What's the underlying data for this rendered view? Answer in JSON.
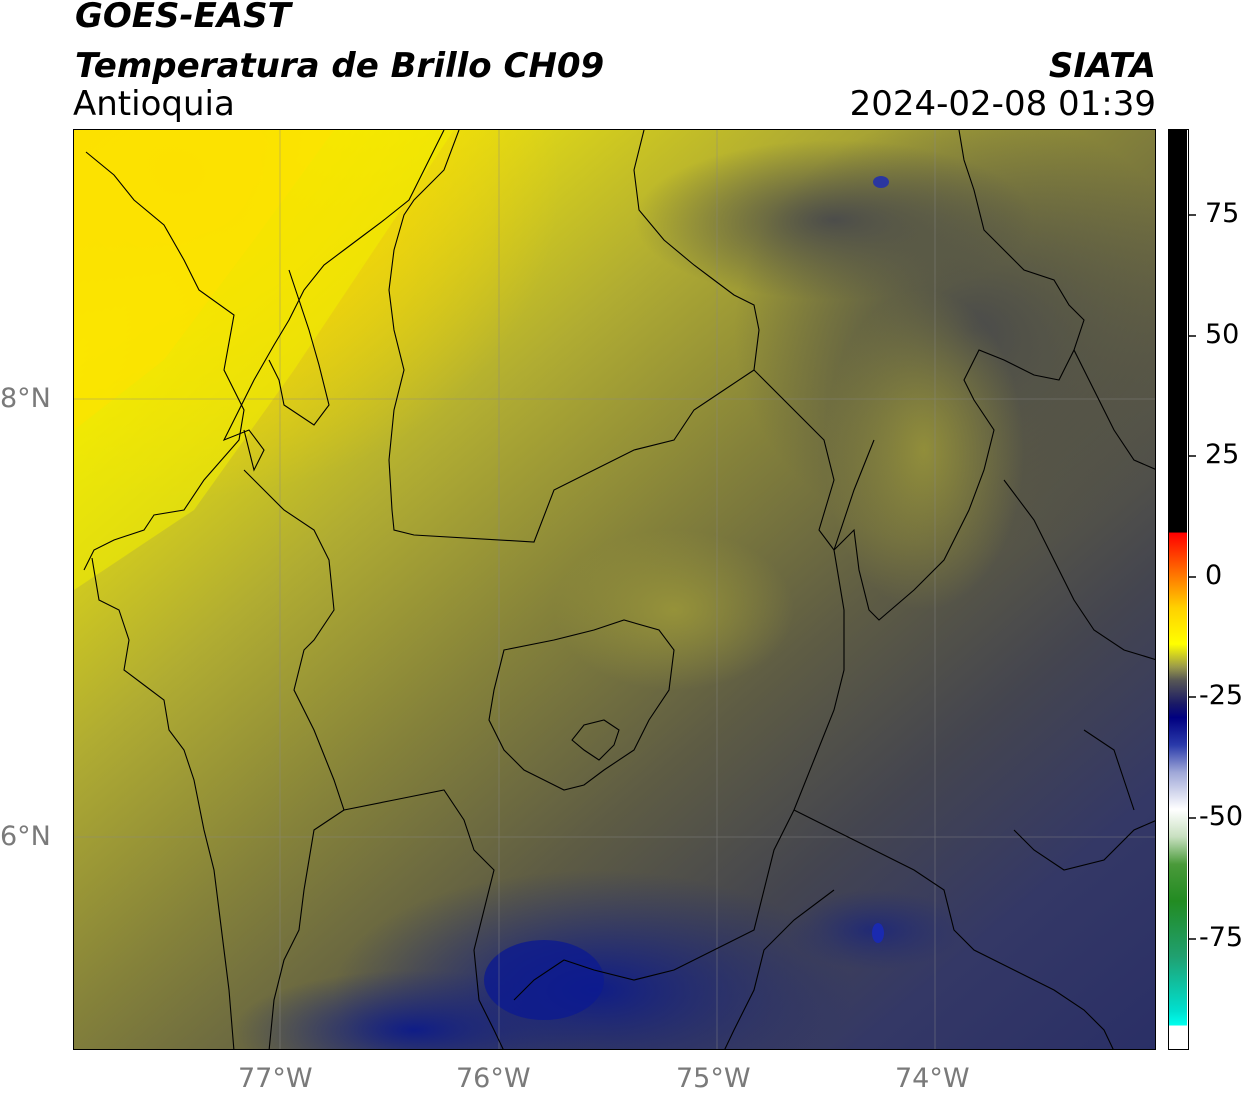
{
  "header": {
    "satellite": "GOES-EAST",
    "product": "Temperatura de Brillo CH09",
    "region": "Antioquia",
    "agency": "SIATA",
    "datetime": "2024-02-08 01:39"
  },
  "map": {
    "lon_ticks": [
      "77°W",
      "76°W",
      "75°W",
      "74°W"
    ],
    "lat_ticks": [
      "8°N",
      "6°N"
    ],
    "colors": {
      "hot_yellow": "#ffd700",
      "yellow": "#f5f500",
      "olive": "#a8a63a",
      "dark_olive": "#6e6a3c",
      "slate": "#4a4a4e",
      "navy": "#2a2f66",
      "deep_navy": "#0c1a80"
    }
  },
  "colorbar": {
    "ticks": [
      "75",
      "50",
      "25",
      "0",
      "-25",
      "-50",
      "-75"
    ],
    "colors": {
      "black": "#000000",
      "red": "#ff0000",
      "orange": "#ff8800",
      "yellow": "#ffff00",
      "gray": "#555555",
      "navy": "#000080",
      "white": "#ffffff",
      "green": "#228b22",
      "cyan": "#00ffee"
    }
  }
}
